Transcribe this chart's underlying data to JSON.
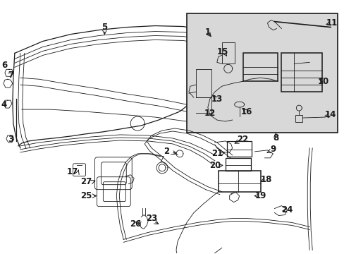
{
  "bg_color": "#ffffff",
  "line_color": "#1a1a1a",
  "inset_bg": "#d8d8d8",
  "fig_width": 4.89,
  "fig_height": 3.6,
  "dpi": 100
}
